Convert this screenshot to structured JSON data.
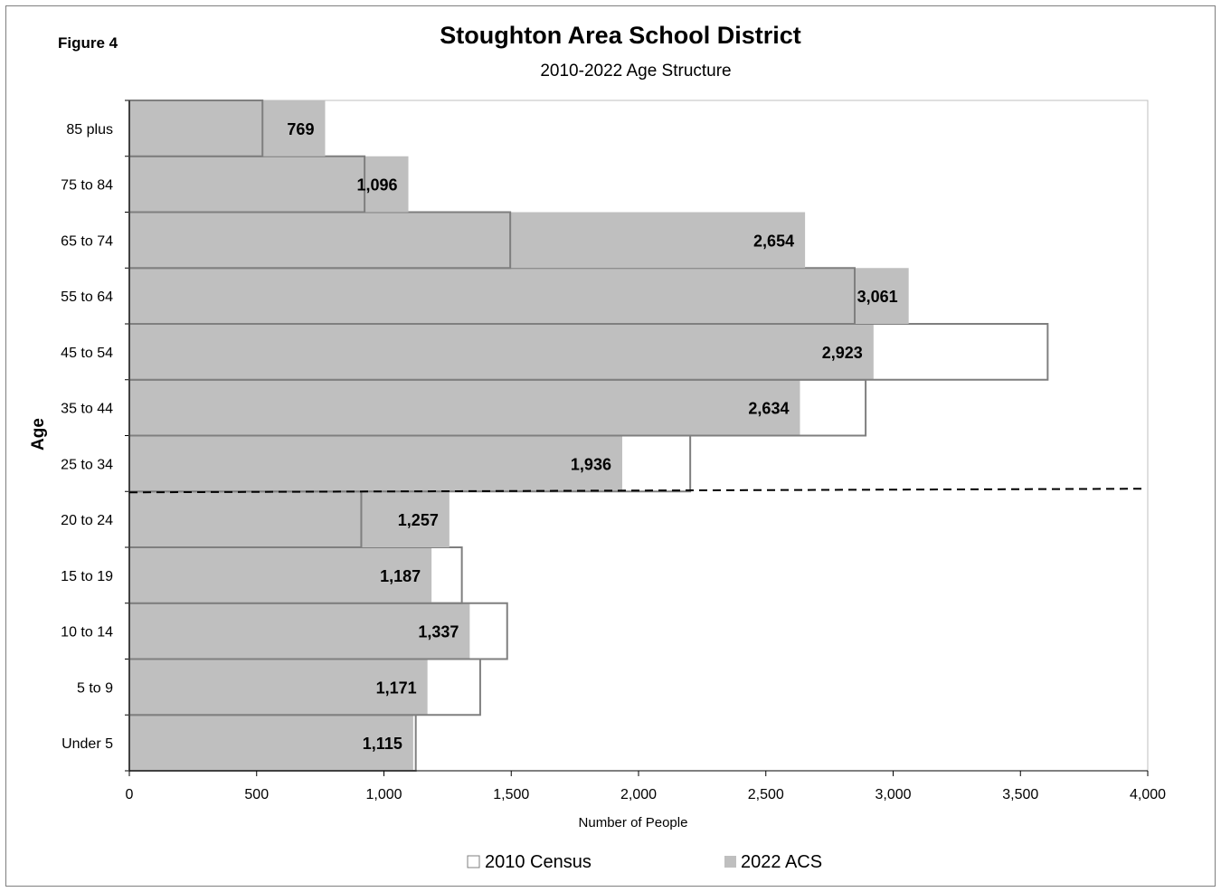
{
  "figure_label": "Figure 4",
  "chart_data": {
    "type": "bar",
    "orientation": "horizontal",
    "title": "Stoughton Area School District",
    "subtitle": "2010-2022 Age Structure",
    "xlabel": "Number of People",
    "ylabel": "Age",
    "categories": [
      "Under 5",
      "5 to 9",
      "10 to 14",
      "15 to 19",
      "20 to 24",
      "25 to 34",
      "35 to 44",
      "45 to 54",
      "55 to 64",
      "65 to 74",
      "75 to 84",
      "85 plus"
    ],
    "series": [
      {
        "name": "2010 Census",
        "color": "#ffffff",
        "values": [
          1125,
          1378,
          1484,
          1306,
          911,
          2203,
          2892,
          3607,
          2849,
          1496,
          924,
          523
        ]
      },
      {
        "name": "2022 ACS",
        "color": "#bfbfbf",
        "values": [
          1115,
          1171,
          1337,
          1187,
          1257,
          1936,
          2634,
          2923,
          3061,
          2654,
          1096,
          769
        ]
      }
    ],
    "data_labels": [
      "1,115",
      "1,171",
      "1,337",
      "1,187",
      "1,257",
      "1,936",
      "2,634",
      "2,923",
      "3,061",
      "2,654",
      "1,096",
      "769"
    ],
    "xlim": [
      0,
      4000
    ],
    "xticks": [
      0,
      500,
      1000,
      1500,
      2000,
      2500,
      3000,
      3500,
      4000
    ],
    "xtick_labels": [
      "0",
      "500",
      "1,000",
      "1,500",
      "2,000",
      "2,500",
      "3,000",
      "3,500",
      "4,000"
    ],
    "dashed_line_between": [
      "20 to 24",
      "25 to 34"
    ],
    "grid": false,
    "legend_position": "bottom"
  }
}
